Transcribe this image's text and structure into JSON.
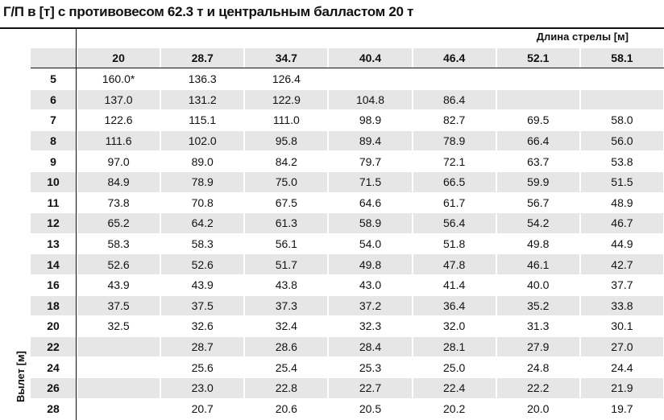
{
  "title": "Г/П в [т] с противовесом 62.3 т и центральным балластом 20 т",
  "boom_label": "Длина стрелы [м]",
  "radius_label": "Вылет [м]",
  "columns": [
    "20",
    "28.7",
    "34.7",
    "40.4",
    "46.4",
    "52.1",
    "58.1"
  ],
  "rows": [
    {
      "radius": "5",
      "values": [
        "160.0*",
        "136.3",
        "126.4",
        null,
        null,
        null,
        null
      ]
    },
    {
      "radius": "6",
      "values": [
        "137.0",
        "131.2",
        "122.9",
        "104.8",
        "86.4",
        null,
        null
      ]
    },
    {
      "radius": "7",
      "values": [
        "122.6",
        "115.1",
        "111.0",
        "98.9",
        "82.7",
        "69.5",
        "58.0"
      ]
    },
    {
      "radius": "8",
      "values": [
        "111.6",
        "102.0",
        "95.8",
        "89.4",
        "78.9",
        "66.4",
        "56.0"
      ]
    },
    {
      "radius": "9",
      "values": [
        "97.0",
        "89.0",
        "84.2",
        "79.7",
        "72.1",
        "63.7",
        "53.8"
      ]
    },
    {
      "radius": "10",
      "values": [
        "84.9",
        "78.9",
        "75.0",
        "71.5",
        "66.5",
        "59.9",
        "51.5"
      ]
    },
    {
      "radius": "11",
      "values": [
        "73.8",
        "70.8",
        "67.5",
        "64.6",
        "61.7",
        "56.7",
        "48.9"
      ]
    },
    {
      "radius": "12",
      "values": [
        "65.2",
        "64.2",
        "61.3",
        "58.9",
        "56.4",
        "54.2",
        "46.7"
      ]
    },
    {
      "radius": "13",
      "values": [
        "58.3",
        "58.3",
        "56.1",
        "54.0",
        "51.8",
        "49.8",
        "44.9"
      ]
    },
    {
      "radius": "14",
      "values": [
        "52.6",
        "52.6",
        "51.7",
        "49.8",
        "47.8",
        "46.1",
        "42.7"
      ]
    },
    {
      "radius": "16",
      "values": [
        "43.9",
        "43.9",
        "43.8",
        "43.0",
        "41.4",
        "40.0",
        "37.7"
      ]
    },
    {
      "radius": "18",
      "values": [
        "37.5",
        "37.5",
        "37.3",
        "37.2",
        "36.4",
        "35.2",
        "33.8"
      ]
    },
    {
      "radius": "20",
      "values": [
        "32.5",
        "32.6",
        "32.4",
        "32.3",
        "32.0",
        "31.3",
        "30.1"
      ]
    },
    {
      "radius": "22",
      "values": [
        null,
        "28.7",
        "28.6",
        "28.4",
        "28.1",
        "27.9",
        "27.0"
      ]
    },
    {
      "radius": "24",
      "values": [
        null,
        "25.6",
        "25.4",
        "25.3",
        "25.0",
        "24.8",
        "24.4"
      ]
    },
    {
      "radius": "26",
      "values": [
        null,
        "23.0",
        "22.8",
        "22.7",
        "22.4",
        "22.2",
        "21.9"
      ]
    },
    {
      "radius": "28",
      "values": [
        null,
        "20.7",
        "20.6",
        "20.5",
        "20.2",
        "20.0",
        "19.7"
      ]
    }
  ]
}
